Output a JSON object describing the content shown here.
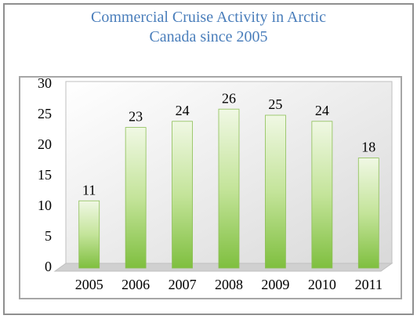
{
  "chart_data": {
    "type": "bar",
    "title": "Commercial Cruise Activity in Arctic Canada since 2005",
    "categories": [
      "2005",
      "2006",
      "2007",
      "2008",
      "2009",
      "2010",
      "2011"
    ],
    "values": [
      11,
      23,
      24,
      26,
      25,
      24,
      18
    ],
    "color": "#9bcf5e",
    "ylim": [
      0,
      30
    ],
    "yticks": [
      0,
      5,
      10,
      15,
      20,
      25,
      30
    ],
    "grid": false
  }
}
